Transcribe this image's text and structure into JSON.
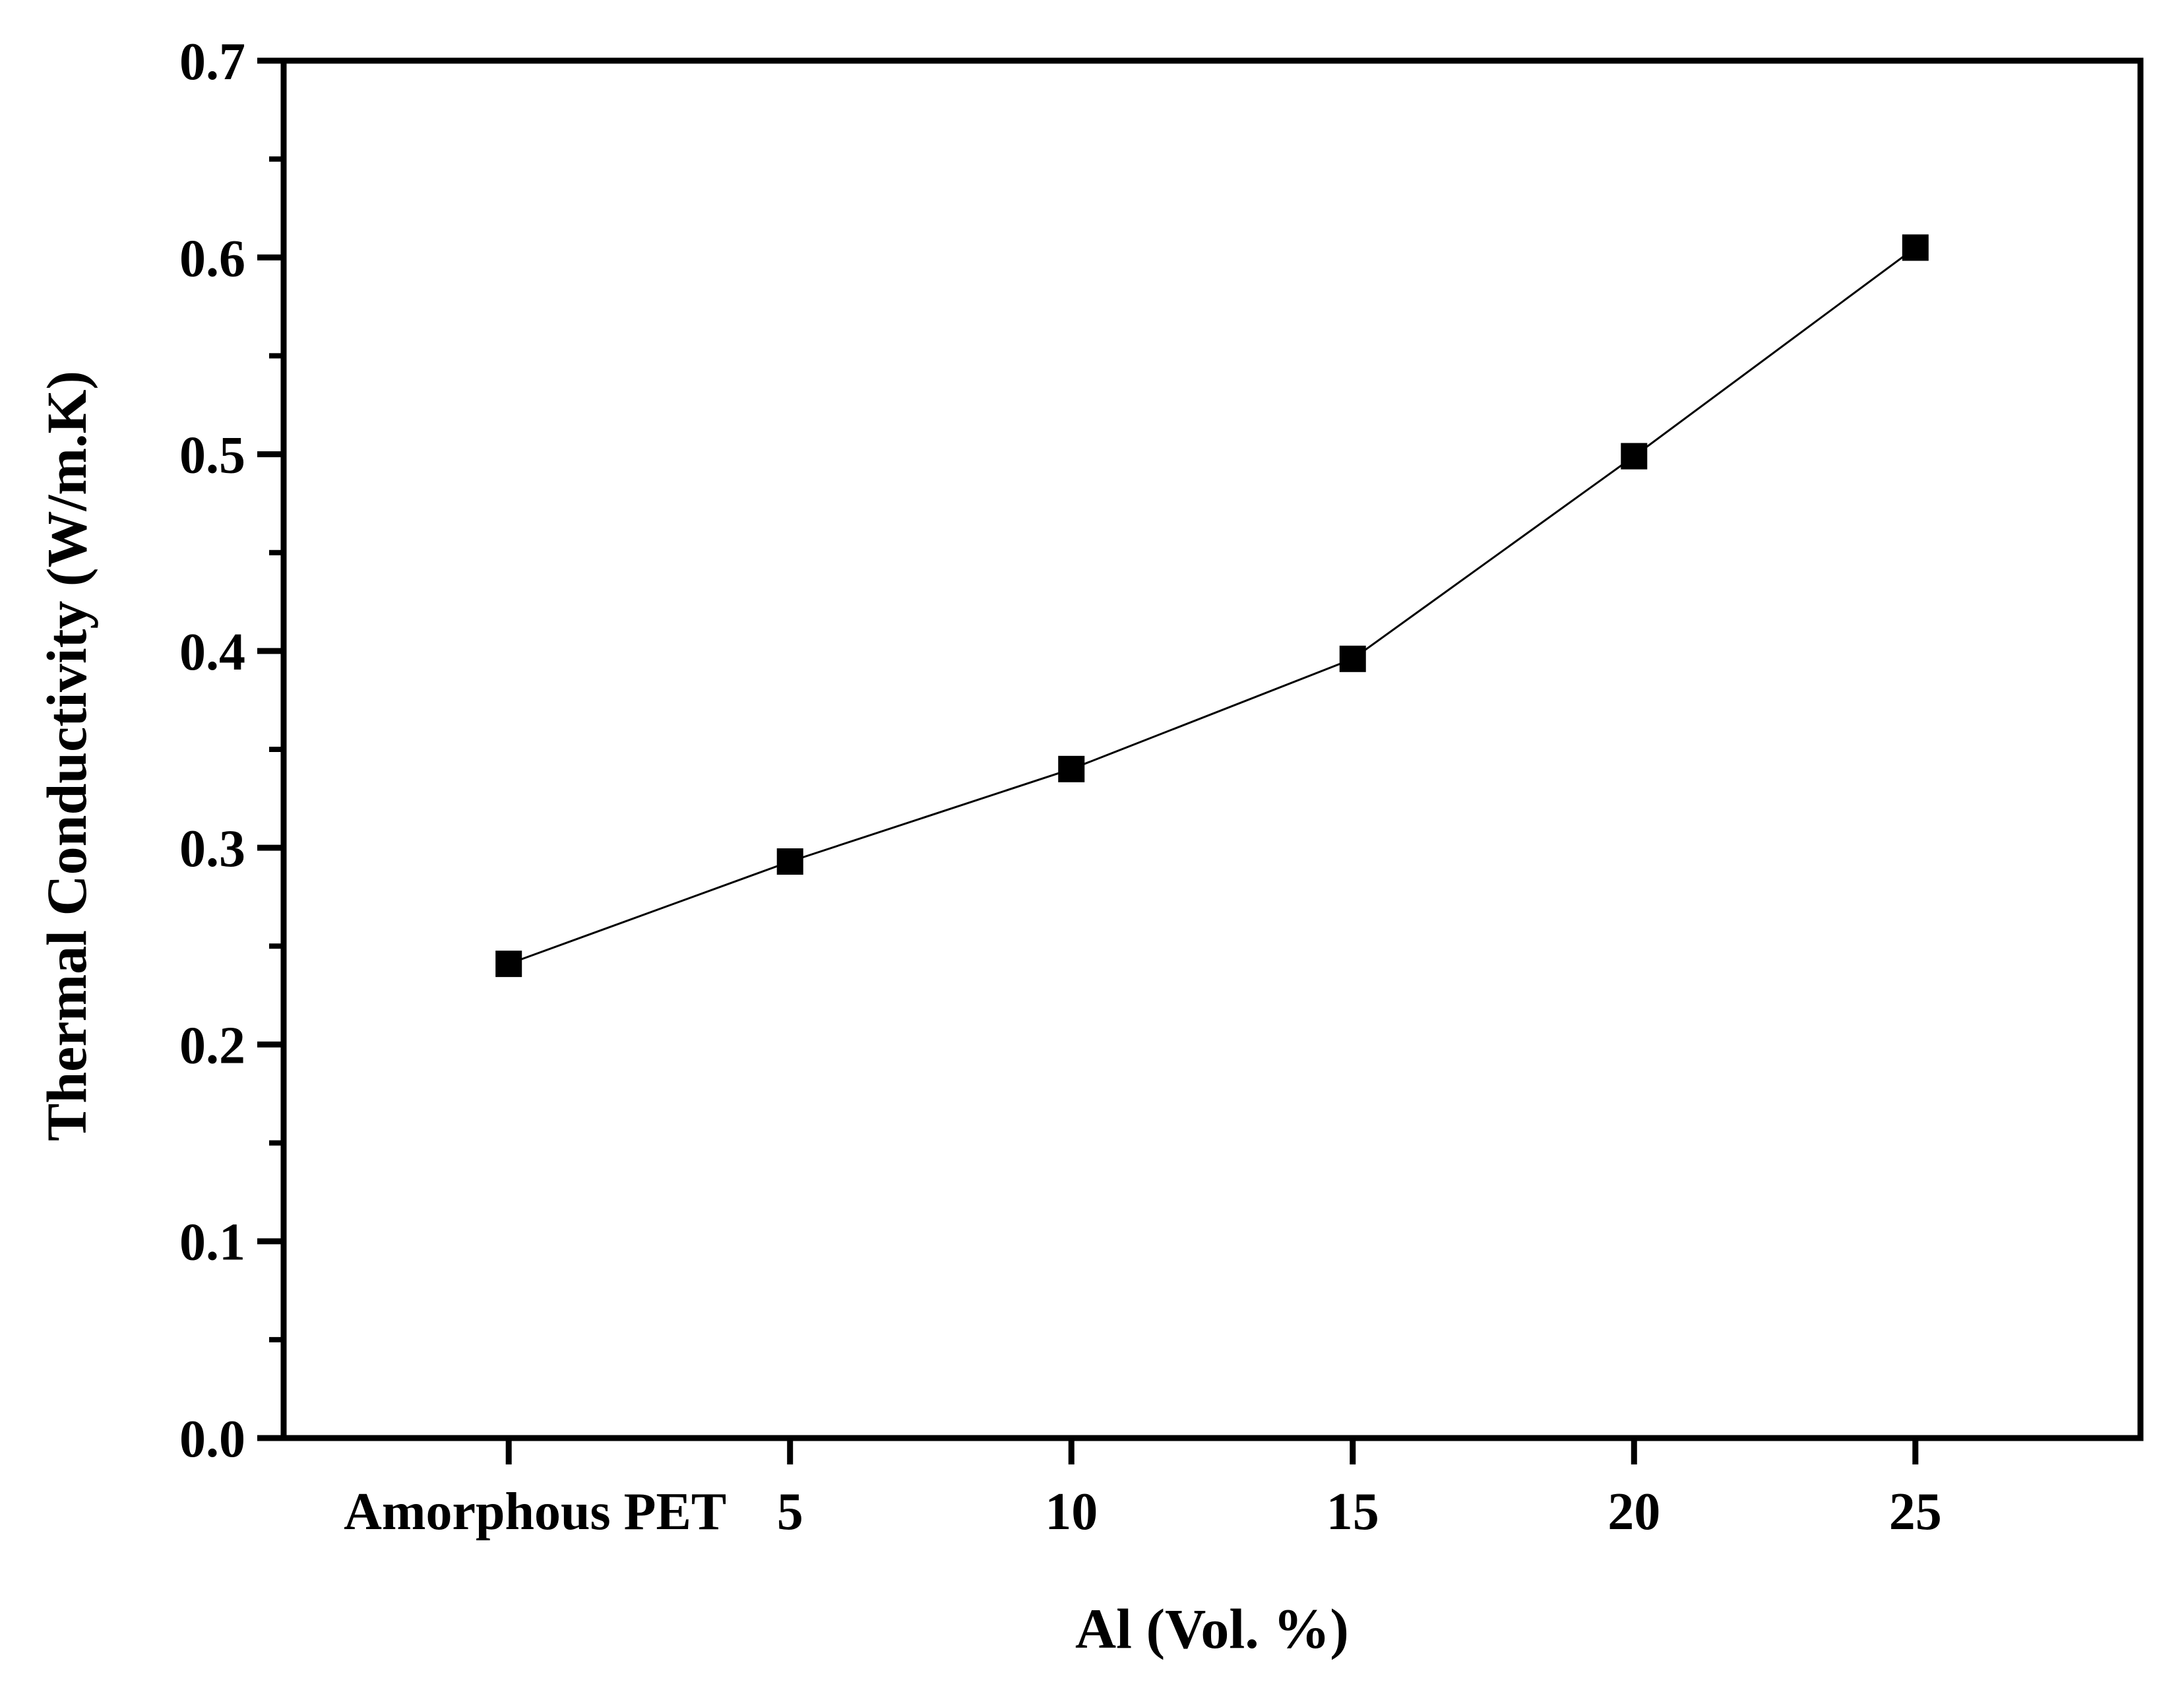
{
  "chart_data": {
    "type": "line",
    "title": "",
    "xlabel": "Al (Vol. %)",
    "ylabel": "Thermal Conductivity (W/m.K)",
    "categories": [
      "Amorphous PET",
      "5",
      "10",
      "15",
      "20",
      "25"
    ],
    "x": [
      0,
      5,
      10,
      15,
      20,
      25
    ],
    "xlim": [
      -4,
      29
    ],
    "ylim": [
      0.0,
      0.7
    ],
    "yticks": [
      0.0,
      0.1,
      0.2,
      0.3,
      0.4,
      0.5,
      0.6,
      0.7
    ],
    "ytick_labels": [
      "0.0",
      "0.1",
      "0.2",
      "0.3",
      "0.4",
      "0.5",
      "0.6",
      "0.7"
    ],
    "grid": false,
    "legend": "none",
    "series": [
      {
        "name": "Thermal Conductivity",
        "marker": "square",
        "color": "#000000",
        "values": [
          0.241,
          0.293,
          0.34,
          0.396,
          0.499,
          0.605
        ]
      }
    ]
  }
}
